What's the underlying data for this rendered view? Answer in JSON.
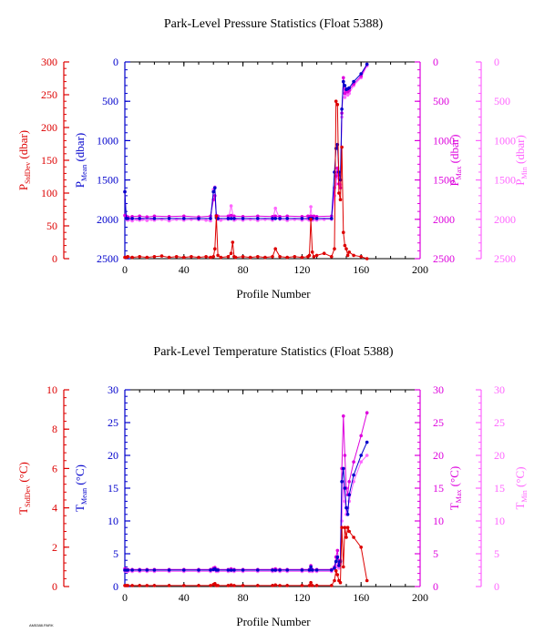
{
  "footnote": "AM5388.PARK",
  "colors": {
    "stddev": "#dd0000",
    "mean": "#0000cc",
    "max": "#dd00dd",
    "min": "#ff66ff",
    "axis": "#000000"
  },
  "chart_data": [
    {
      "type": "line",
      "title": "Park-Level Pressure Statistics (Float 5388)",
      "xlabel": "Profile Number",
      "xlim": [
        0,
        200
      ],
      "xticks": [
        0,
        40,
        80,
        120,
        160,
        200
      ],
      "grid": false,
      "axes": {
        "stddev": {
          "label_main": "P",
          "label_sub": "StdDev",
          "label_unit": " (dbar)",
          "lim": [
            0,
            300
          ],
          "ticks": [
            0,
            50,
            100,
            150,
            200,
            250,
            300
          ],
          "inverted": false
        },
        "mean": {
          "label_main": "P",
          "label_sub": "Mean",
          "label_unit": " (dbar)",
          "lim": [
            0,
            2500
          ],
          "ticks": [
            0,
            500,
            1000,
            1500,
            2000,
            2500
          ],
          "inverted": true
        },
        "max": {
          "label_main": "P",
          "label_sub": "Max",
          "label_unit": " (dbar)",
          "lim": [
            0,
            2500
          ],
          "ticks": [
            0,
            500,
            1000,
            1500,
            2000,
            2500
          ],
          "inverted": true
        },
        "min": {
          "label_main": "P",
          "label_sub": "Min",
          "label_unit": " (dbar)",
          "lim": [
            0,
            2500
          ],
          "ticks": [
            0,
            500,
            1000,
            1500,
            2000,
            2500
          ],
          "inverted": true
        }
      },
      "series": [
        {
          "key": "min",
          "x": [
            0,
            1,
            2,
            3,
            5,
            8,
            10,
            12,
            15,
            18,
            20,
            25,
            30,
            35,
            40,
            45,
            50,
            55,
            58,
            60,
            61,
            62,
            63,
            65,
            70,
            72,
            74,
            75,
            80,
            85,
            90,
            95,
            100,
            102,
            105,
            110,
            115,
            120,
            124,
            125,
            126,
            127,
            128,
            130,
            135,
            140,
            142,
            143,
            144,
            145,
            146,
            147,
            148,
            149,
            150,
            151,
            152,
            155,
            160,
            164
          ],
          "y": [
            1650,
            2000,
            2010,
            2000,
            2020,
            2000,
            2010,
            2000,
            2015,
            2000,
            2010,
            2000,
            2020,
            2000,
            2010,
            2000,
            2005,
            2010,
            2020,
            1620,
            1590,
            1950,
            2000,
            2010,
            2000,
            1830,
            2010,
            2000,
            2010,
            2000,
            2015,
            2000,
            2010,
            1860,
            2000,
            2015,
            2000,
            2010,
            2000,
            2010,
            1840,
            2010,
            2000,
            2010,
            2000,
            2000,
            1700,
            1550,
            1400,
            1480,
            1560,
            700,
            250,
            450,
            380,
            420,
            400,
            300,
            200,
            50
          ]
        },
        {
          "key": "max",
          "x": [
            0,
            1,
            2,
            5,
            10,
            15,
            20,
            30,
            40,
            50,
            58,
            60,
            61,
            62,
            63,
            70,
            72,
            74,
            80,
            90,
            100,
            102,
            105,
            110,
            120,
            124,
            125,
            126,
            127,
            128,
            130,
            140,
            142,
            143,
            144,
            145,
            146,
            147,
            148,
            149,
            150,
            151,
            152,
            155,
            160,
            164
          ],
          "y": [
            1950,
            1960,
            1970,
            1965,
            1960,
            1970,
            1960,
            1965,
            1960,
            1970,
            1960,
            1750,
            1700,
            1950,
            1960,
            1960,
            1950,
            1960,
            1965,
            1960,
            1965,
            1960,
            1965,
            1960,
            1965,
            1960,
            1965,
            1960,
            1965,
            1960,
            1965,
            1960,
            1600,
            1450,
            1350,
            1550,
            1600,
            650,
            200,
            400,
            350,
            380,
            360,
            280,
            180,
            30
          ]
        },
        {
          "key": "mean",
          "x": [
            0,
            1,
            2,
            5,
            10,
            20,
            30,
            40,
            50,
            58,
            60,
            61,
            62,
            63,
            70,
            72,
            74,
            80,
            90,
            100,
            102,
            105,
            110,
            120,
            125,
            126,
            127,
            130,
            140,
            142,
            143,
            144,
            145,
            146,
            147,
            148,
            149,
            150,
            151,
            152,
            155,
            160,
            164
          ],
          "y": [
            1650,
            1990,
            1990,
            1990,
            1990,
            1990,
            1990,
            1990,
            1990,
            1990,
            1650,
            1600,
            1980,
            1990,
            1990,
            1990,
            1990,
            1990,
            1990,
            1990,
            1990,
            1990,
            1990,
            1990,
            1990,
            1990,
            1990,
            1990,
            1990,
            1400,
            1100,
            1050,
            1400,
            1500,
            600,
            250,
            300,
            350,
            340,
            330,
            250,
            150,
            30
          ]
        },
        {
          "key": "stddev",
          "x": [
            0,
            1,
            2,
            5,
            10,
            15,
            20,
            25,
            30,
            35,
            40,
            45,
            50,
            55,
            58,
            60,
            61,
            62,
            63,
            65,
            70,
            72,
            73,
            74,
            75,
            80,
            85,
            90,
            95,
            100,
            102,
            105,
            110,
            115,
            120,
            124,
            125,
            126,
            127,
            128,
            130,
            135,
            140,
            142,
            143,
            144,
            145,
            146,
            147,
            148,
            149,
            150,
            151,
            152,
            155,
            160,
            164
          ],
          "y": [
            2,
            2,
            3,
            2,
            3,
            2,
            3,
            4,
            2,
            3,
            2,
            3,
            2,
            3,
            2,
            3,
            15,
            65,
            5,
            2,
            3,
            8,
            25,
            3,
            2,
            3,
            2,
            3,
            2,
            3,
            15,
            3,
            2,
            3,
            2,
            3,
            5,
            60,
            10,
            3,
            5,
            8,
            3,
            15,
            240,
            235,
            100,
            90,
            170,
            40,
            20,
            15,
            5,
            10,
            5,
            3,
            0
          ]
        }
      ]
    },
    {
      "type": "line",
      "title": "Park-Level Temperature Statistics (Float 5388)",
      "xlabel": "Profile Number",
      "xlim": [
        0,
        200
      ],
      "xticks": [
        0,
        40,
        80,
        120,
        160,
        200
      ],
      "grid": false,
      "axes": {
        "stddev": {
          "label_main": "T",
          "label_sub": "StdDev",
          "label_unit": " (°C)",
          "lim": [
            0,
            10
          ],
          "ticks": [
            0,
            2,
            4,
            6,
            8,
            10
          ],
          "inverted": false
        },
        "mean": {
          "label_main": "T",
          "label_sub": "Mean",
          "label_unit": " (°C)",
          "lim": [
            0,
            30
          ],
          "ticks": [
            0,
            5,
            10,
            15,
            20,
            25,
            30
          ],
          "inverted": false
        },
        "max": {
          "label_main": "T",
          "label_sub": "Max",
          "label_unit": " (°C)",
          "lim": [
            0,
            30
          ],
          "ticks": [
            0,
            5,
            10,
            15,
            20,
            25,
            30
          ],
          "inverted": false
        },
        "min": {
          "label_main": "T",
          "label_sub": "Min",
          "label_unit": " (°C)",
          "lim": [
            0,
            30
          ],
          "ticks": [
            0,
            5,
            10,
            15,
            20,
            25,
            30
          ],
          "inverted": false
        }
      },
      "series": [
        {
          "key": "min",
          "x": [
            0,
            1,
            2,
            5,
            10,
            15,
            20,
            30,
            40,
            50,
            58,
            60,
            61,
            62,
            63,
            70,
            72,
            74,
            80,
            90,
            100,
            102,
            105,
            110,
            120,
            125,
            126,
            127,
            130,
            140,
            142,
            143,
            144,
            145,
            146,
            147,
            148,
            149,
            150,
            151,
            152,
            155,
            160,
            164
          ],
          "y": [
            2.4,
            2.3,
            2.3,
            2.3,
            2.3,
            2.3,
            2.3,
            2.3,
            2.3,
            2.3,
            2.3,
            2.5,
            2.6,
            2.3,
            2.3,
            2.3,
            2.4,
            2.3,
            2.3,
            2.3,
            2.3,
            2.4,
            2.3,
            2.3,
            2.3,
            2.3,
            2.8,
            2.3,
            2.3,
            2.3,
            2.7,
            3.2,
            3.0,
            2.8,
            3.5,
            10,
            16,
            13,
            11,
            12,
            13,
            16,
            19,
            20
          ]
        },
        {
          "key": "max",
          "x": [
            0,
            1,
            2,
            5,
            10,
            15,
            20,
            30,
            40,
            50,
            58,
            60,
            61,
            62,
            63,
            70,
            72,
            74,
            80,
            90,
            100,
            102,
            105,
            110,
            120,
            125,
            126,
            127,
            130,
            140,
            142,
            143,
            144,
            145,
            146,
            147,
            148,
            149,
            150,
            151,
            152,
            155,
            160,
            164
          ],
          "y": [
            2.7,
            2.6,
            2.6,
            2.6,
            2.6,
            2.6,
            2.6,
            2.6,
            2.6,
            2.6,
            2.6,
            2.8,
            2.9,
            2.6,
            2.6,
            2.6,
            2.7,
            2.6,
            2.6,
            2.6,
            2.6,
            2.7,
            2.6,
            2.6,
            2.6,
            2.6,
            3.2,
            2.6,
            2.6,
            2.6,
            3.0,
            4.5,
            5.5,
            3.5,
            4.0,
            18,
            26,
            20,
            15,
            14,
            16,
            19,
            23,
            26.5
          ]
        },
        {
          "key": "mean",
          "x": [
            0,
            1,
            2,
            5,
            10,
            15,
            20,
            30,
            40,
            50,
            58,
            60,
            61,
            62,
            63,
            70,
            72,
            74,
            80,
            90,
            100,
            102,
            105,
            110,
            120,
            125,
            126,
            127,
            130,
            140,
            142,
            143,
            144,
            145,
            146,
            147,
            148,
            149,
            150,
            151,
            152,
            155,
            160,
            164
          ],
          "y": [
            2.5,
            2.5,
            2.5,
            2.5,
            2.5,
            2.5,
            2.5,
            2.5,
            2.5,
            2.5,
            2.5,
            2.6,
            2.7,
            2.5,
            2.5,
            2.5,
            2.5,
            2.5,
            2.5,
            2.5,
            2.5,
            2.5,
            2.5,
            2.5,
            2.5,
            2.5,
            3.0,
            2.5,
            2.5,
            2.5,
            2.8,
            3.8,
            4.5,
            3.2,
            3.8,
            16,
            18,
            15,
            12,
            11,
            14,
            17,
            20,
            22
          ]
        },
        {
          "key": "stddev",
          "x": [
            0,
            1,
            2,
            5,
            10,
            15,
            20,
            30,
            40,
            50,
            58,
            60,
            61,
            62,
            63,
            70,
            72,
            74,
            80,
            90,
            100,
            102,
            105,
            110,
            120,
            125,
            126,
            127,
            130,
            140,
            142,
            143,
            144,
            145,
            146,
            147,
            148,
            149,
            150,
            151,
            152,
            155,
            160,
            164
          ],
          "y": [
            0.05,
            0.05,
            0.05,
            0.05,
            0.05,
            0.05,
            0.05,
            0.05,
            0.05,
            0.05,
            0.05,
            0.1,
            0.15,
            0.05,
            0.05,
            0.05,
            0.08,
            0.05,
            0.05,
            0.05,
            0.05,
            0.08,
            0.05,
            0.05,
            0.05,
            0.05,
            0.2,
            0.05,
            0.05,
            0.05,
            0.3,
            0.8,
            0.6,
            0.3,
            0.2,
            3.0,
            1.0,
            3.0,
            2.5,
            3.0,
            2.8,
            2.5,
            2.0,
            0.3
          ]
        }
      ]
    }
  ]
}
